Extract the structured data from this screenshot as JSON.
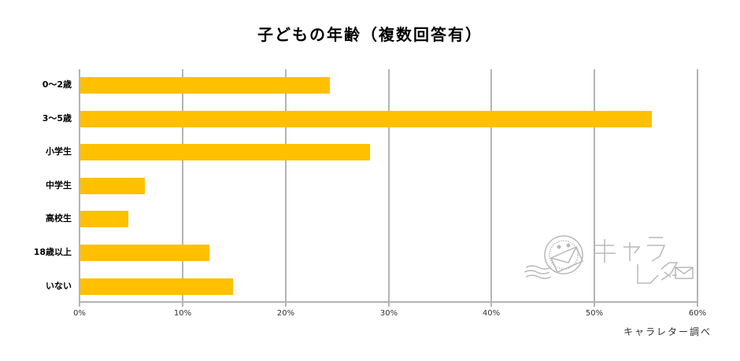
{
  "chart_data": {
    "type": "bar",
    "orientation": "horizontal",
    "title": "子どもの年齢（複数回答有）",
    "categories": [
      "0～2歳",
      "3～5歳",
      "小学生",
      "中学生",
      "高校生",
      "18歳以上",
      "いない"
    ],
    "values": [
      24.2,
      55.5,
      28.1,
      6.3,
      4.7,
      12.5,
      14.8
    ],
    "xlabel": "",
    "ylabel": "",
    "xlim": [
      0,
      60
    ],
    "x_ticks": [
      "0%",
      "10%",
      "20%",
      "30%",
      "40%",
      "50%",
      "60%"
    ],
    "unit": "%",
    "grid": true,
    "legend": null,
    "bar_color": "#ffc000",
    "annotation": "キャラレター調べ"
  },
  "title": "子どもの年齢（複数回答有）",
  "source": "キャラレター調べ",
  "logo": {
    "name": "キャラレター"
  }
}
